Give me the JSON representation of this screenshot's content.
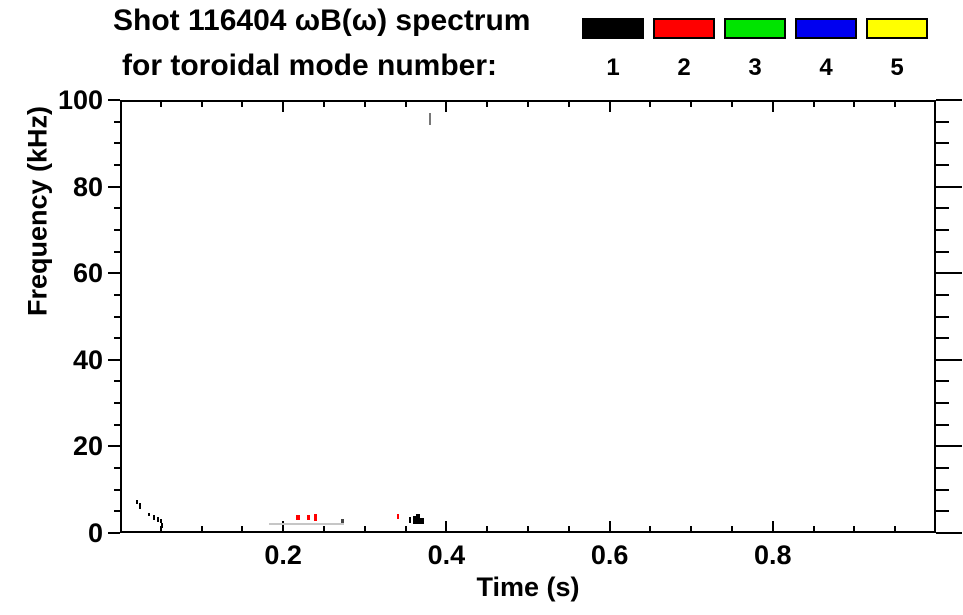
{
  "chart_data": {
    "type": "scatter",
    "title": "Shot 116404 ωB(ω) spectrum",
    "subtitle": "for toroidal mode number:",
    "xlabel": "Time (s)",
    "ylabel": "Frequency (kHz)",
    "xlim": [
      0,
      1.0
    ],
    "ylim": [
      0,
      100
    ],
    "x_major_ticks": [
      {
        "value": 0.2,
        "label": "0.2"
      },
      {
        "value": 0.4,
        "label": "0.4"
      },
      {
        "value": 0.6,
        "label": "0.6"
      },
      {
        "value": 0.8,
        "label": "0.8"
      }
    ],
    "x_minor_step": 0.05,
    "y_major_ticks": [
      {
        "value": 0,
        "label": "0"
      },
      {
        "value": 20,
        "label": "20"
      },
      {
        "value": 40,
        "label": "40"
      },
      {
        "value": 60,
        "label": "60"
      },
      {
        "value": 80,
        "label": "80"
      },
      {
        "value": 100,
        "label": "100"
      }
    ],
    "y_minor_step": 5,
    "grid": false,
    "legend": {
      "position": "top-right",
      "entries": [
        {
          "label": "1",
          "color": "#000000"
        },
        {
          "label": "2",
          "color": "#ff0000"
        },
        {
          "label": "3",
          "color": "#00e400"
        },
        {
          "label": "4",
          "color": "#0000f0"
        },
        {
          "label": "5",
          "color": "#ffff00"
        }
      ]
    },
    "marks": [
      {
        "series": "n=1",
        "color": "#000000",
        "t": 0.02,
        "f": 7.2,
        "dt": 0.0025,
        "df": 0.9
      },
      {
        "series": "n=1",
        "color": "#000000",
        "t": 0.023,
        "f": 6.2,
        "dt": 0.0025,
        "df": 1.4
      },
      {
        "series": "n=1",
        "color": "#000000",
        "t": 0.034,
        "f": 4.3,
        "dt": 0.0025,
        "df": 0.7
      },
      {
        "series": "n=1",
        "color": "#000000",
        "t": 0.04,
        "f": 3.6,
        "dt": 0.0025,
        "df": 1.2
      },
      {
        "series": "n=1",
        "color": "#000000",
        "t": 0.045,
        "f": 3.1,
        "dt": 0.0025,
        "df": 1.2
      },
      {
        "series": "n=1",
        "color": "#000000",
        "t": 0.049,
        "f": 2.8,
        "dt": 0.0025,
        "df": 0.9
      },
      {
        "series": "n=1",
        "color": "#000000",
        "t": 0.05,
        "f": 1.7,
        "dt": 0.0025,
        "df": 1.2
      },
      {
        "series": "broadband",
        "color": "#c6c6c6",
        "t": 0.182,
        "f": 2.1,
        "dt": 0.093,
        "df": 0.4
      },
      {
        "series": "n=2",
        "color": "#ff0000",
        "t": 0.216,
        "f": 3.6,
        "dt": 0.005,
        "df": 1.2
      },
      {
        "series": "n=2",
        "color": "#ff0000",
        "t": 0.229,
        "f": 3.6,
        "dt": 0.004,
        "df": 1.2
      },
      {
        "series": "n=2",
        "color": "#ff0000",
        "t": 0.238,
        "f": 3.6,
        "dt": 0.004,
        "df": 1.6
      },
      {
        "series": "n=1",
        "color": "#444444",
        "t": 0.271,
        "f": 2.8,
        "dt": 0.004,
        "df": 0.9
      },
      {
        "series": "n=2",
        "color": "#ff0000",
        "t": 0.34,
        "f": 3.8,
        "dt": 0.0025,
        "df": 1.2
      },
      {
        "series": "n=1",
        "color": "#000000",
        "t": 0.354,
        "f": 3.0,
        "dt": 0.0025,
        "df": 1.4
      },
      {
        "series": "n=1",
        "color": "#000000",
        "t": 0.359,
        "f": 3.0,
        "dt": 0.004,
        "df": 1.8
      },
      {
        "series": "n=1",
        "color": "#000000",
        "t": 0.363,
        "f": 3.3,
        "dt": 0.005,
        "df": 2.3
      },
      {
        "series": "n=1",
        "color": "#000000",
        "t": 0.368,
        "f": 2.8,
        "dt": 0.004,
        "df": 1.4
      },
      {
        "series": "unidentified",
        "color": "#777777",
        "t": 0.379,
        "f": 95.6,
        "dt": 0.0025,
        "df": 2.8
      }
    ]
  }
}
